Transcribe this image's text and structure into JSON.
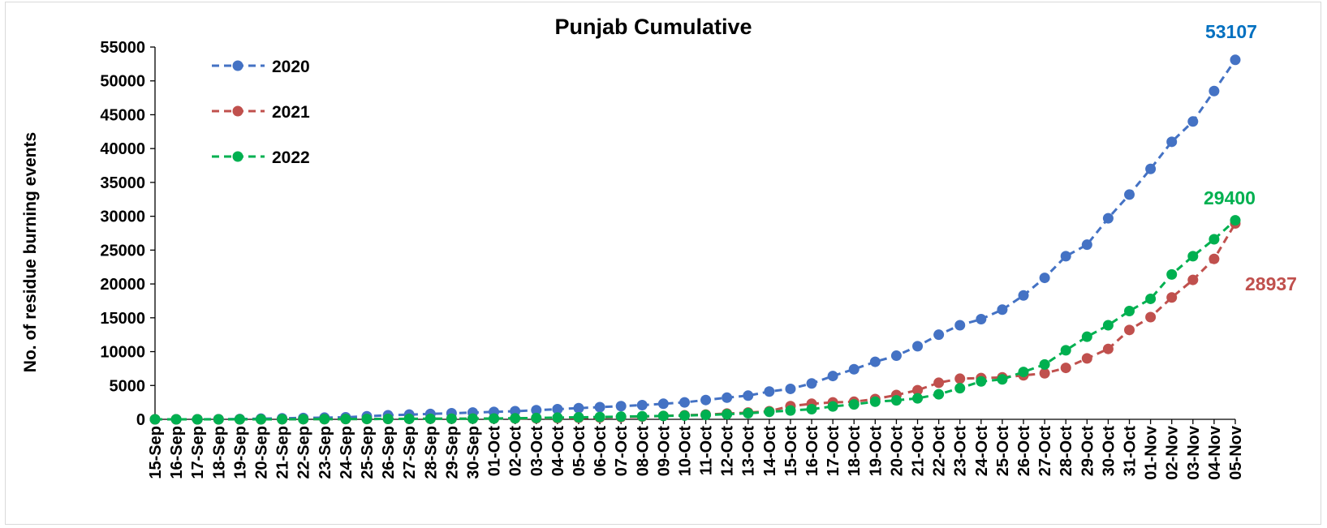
{
  "chart_data": {
    "type": "line",
    "title": "Punjab Cumulative",
    "xlabel": "",
    "ylabel": "No. of residue burning events",
    "ylim": [
      0,
      55000
    ],
    "yticks": [
      0,
      5000,
      10000,
      15000,
      20000,
      25000,
      30000,
      35000,
      40000,
      45000,
      50000,
      55000
    ],
    "grid": false,
    "legend_position": "top-left",
    "categories": [
      "15-Sep",
      "16-Sep",
      "17-Sep",
      "18-Sep",
      "19-Sep",
      "20-Sep",
      "21-Sep",
      "22-Sep",
      "23-Sep",
      "24-Sep",
      "25-Sep",
      "26-Sep",
      "27-Sep",
      "28-Sep",
      "29-Sep",
      "30-Sep",
      "01-Oct",
      "02-Oct",
      "03-Oct",
      "04-Oct",
      "05-Oct",
      "06-Oct",
      "07-Oct",
      "08-Oct",
      "09-Oct",
      "10-Oct",
      "11-Oct",
      "12-Oct",
      "13-Oct",
      "14-Oct",
      "15-Oct",
      "16-Oct",
      "17-Oct",
      "18-Oct",
      "19-Oct",
      "20-Oct",
      "21-Oct",
      "22-Oct",
      "23-Oct",
      "24-Oct",
      "25-Oct",
      "26-Oct",
      "27-Oct",
      "28-Oct",
      "29-Oct",
      "30-Oct",
      "31-Oct",
      "01-Nov",
      "02-Nov",
      "03-Nov",
      "04-Nov",
      "05-Nov"
    ],
    "series": [
      {
        "name": "2020",
        "color": "#4472C4",
        "values": [
          0,
          0,
          0,
          20,
          50,
          100,
          150,
          200,
          250,
          300,
          450,
          600,
          700,
          800,
          900,
          1000,
          1100,
          1200,
          1350,
          1500,
          1650,
          1800,
          1950,
          2100,
          2300,
          2500,
          2850,
          3200,
          3500,
          4100,
          4500,
          5300,
          6400,
          7400,
          8500,
          9400,
          10800,
          12500,
          13900,
          14800,
          16200,
          18300,
          20900,
          24100,
          25800,
          29700,
          33200,
          37000,
          41000,
          44000,
          48500,
          53107
        ],
        "end_label": "53107",
        "end_label_color": "#0070C0"
      },
      {
        "name": "2021",
        "color": "#C0504D",
        "values": [
          0,
          0,
          0,
          0,
          0,
          0,
          10,
          20,
          30,
          40,
          50,
          60,
          70,
          80,
          90,
          100,
          110,
          130,
          150,
          180,
          220,
          270,
          330,
          400,
          500,
          600,
          700,
          850,
          1000,
          1200,
          1950,
          2300,
          2500,
          2600,
          3000,
          3600,
          4300,
          5400,
          6000,
          6100,
          6200,
          6500,
          6800,
          7600,
          9000,
          10400,
          13200,
          15100,
          18000,
          20600,
          23700,
          28937
        ],
        "end_label": "28937",
        "end_label_color": "#C0504D"
      },
      {
        "name": "2022",
        "color": "#00B050",
        "values": [
          0,
          0,
          0,
          0,
          0,
          0,
          10,
          20,
          30,
          40,
          50,
          60,
          70,
          80,
          90,
          100,
          120,
          150,
          200,
          250,
          300,
          350,
          400,
          450,
          500,
          550,
          650,
          750,
          900,
          1100,
          1300,
          1500,
          1900,
          2200,
          2600,
          2800,
          3100,
          3700,
          4600,
          5600,
          5900,
          7000,
          8100,
          10200,
          12200,
          13900,
          16000,
          17800,
          21400,
          24100,
          26600,
          29400
        ],
        "end_label": "29400",
        "end_label_color": "#00B050"
      }
    ]
  }
}
